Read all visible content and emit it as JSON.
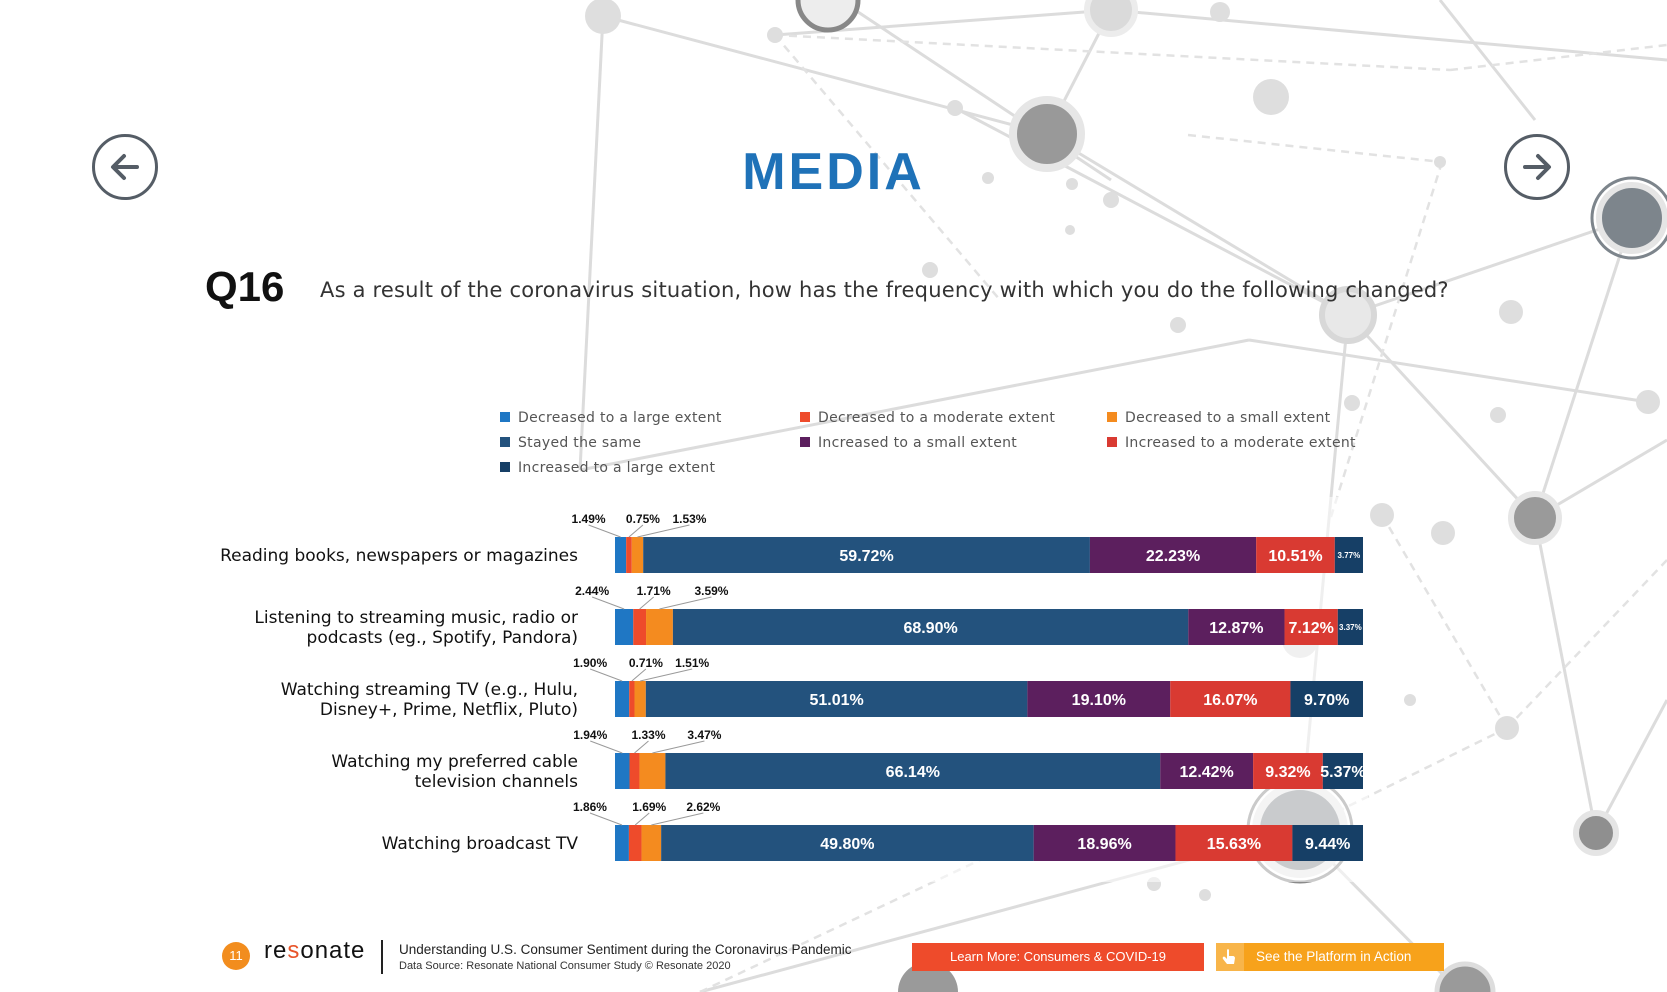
{
  "page": {
    "title": "MEDIA",
    "question_label": "Q16",
    "question_text": "As a result of the coronavirus situation, how has the frequency with which you do the following changed?"
  },
  "nav": {
    "prev_icon": "arrow-left-icon",
    "next_icon": "arrow-right-icon"
  },
  "colors": {
    "title": "#1f72b8",
    "accent_orange": "#f28d1e",
    "accent_red": "#ee4b2b"
  },
  "footer": {
    "page_number": "11",
    "logo_text": "resonate",
    "title": "Understanding U.S. Consumer Sentiment during the Coronavirus Pandemic",
    "source": "Data Source: Resonate National Consumer Study © Resonate 2020",
    "learn_more_button": "Learn More: Consumers & COVID-19",
    "platform_button": "See the Platform in Action",
    "platform_icon": "hand-pointer-icon"
  },
  "chart_data": {
    "type": "bar",
    "orientation": "horizontal-stacked",
    "legend_position": "top",
    "categories": [
      "Reading books, newspapers or magazines",
      "Listening to streaming music, radio or podcasts (eg., Spotify, Pandora)",
      "Watching streaming TV (e.g., Hulu, Disney+, Prime, Netflix, Pluto)",
      "Watching my preferred cable television channels",
      "Watching broadcast TV"
    ],
    "category_lines": [
      [
        "Reading books, newspapers or magazines"
      ],
      [
        "Listening to streaming music, radio or",
        "podcasts (eg., Spotify, Pandora)"
      ],
      [
        "Watching streaming TV (e.g., Hulu,",
        "Disney+, Prime, Netflix, Pluto)"
      ],
      [
        "Watching my preferred cable",
        "television channels"
      ],
      [
        "Watching broadcast TV"
      ]
    ],
    "series": [
      {
        "name": "Decreased to a large extent",
        "color": "#1f77c4",
        "values": [
          1.49,
          2.44,
          1.9,
          1.94,
          1.86
        ],
        "labels": [
          "1.49%",
          "2.44%",
          "1.90%",
          "1.94%",
          "1.86%"
        ]
      },
      {
        "name": "Decreased to a moderate extent",
        "color": "#ee4b2b",
        "values": [
          0.75,
          1.71,
          0.71,
          1.33,
          1.69
        ],
        "labels": [
          "0.75%",
          "1.71%",
          "0.71%",
          "1.33%",
          "1.69%"
        ]
      },
      {
        "name": "Decreased to a small extent",
        "color": "#f48b1f",
        "values": [
          1.53,
          3.59,
          1.51,
          3.47,
          2.62
        ],
        "labels": [
          "1.53%",
          "3.59%",
          "1.51%",
          "3.47%",
          "2.62%"
        ]
      },
      {
        "name": "Stayed the same",
        "color": "#23527d",
        "values": [
          59.72,
          68.9,
          51.01,
          66.14,
          49.8
        ],
        "labels": [
          "59.72%",
          "68.90%",
          "51.01%",
          "66.14%",
          "49.80%"
        ]
      },
      {
        "name": "Increased to a small extent",
        "color": "#5c1f5e",
        "values": [
          22.23,
          12.87,
          19.1,
          12.42,
          18.96
        ],
        "labels": [
          "22.23%",
          "12.87%",
          "19.10%",
          "12.42%",
          "18.96%"
        ]
      },
      {
        "name": "Increased to a moderate extent",
        "color": "#d93a32",
        "values": [
          10.51,
          7.12,
          16.07,
          9.32,
          15.63
        ],
        "labels": [
          "10.51%",
          "7.12%",
          "16.07%",
          "9.32%",
          "15.63%"
        ]
      },
      {
        "name": "Increased to a large extent",
        "color": "#163f66",
        "values": [
          3.77,
          3.37,
          9.7,
          5.37,
          9.44
        ],
        "labels": [
          "3.77%",
          "3.37%",
          "9.70%",
          "5.37%",
          "9.44%"
        ]
      }
    ],
    "xlim": [
      0,
      100
    ]
  }
}
